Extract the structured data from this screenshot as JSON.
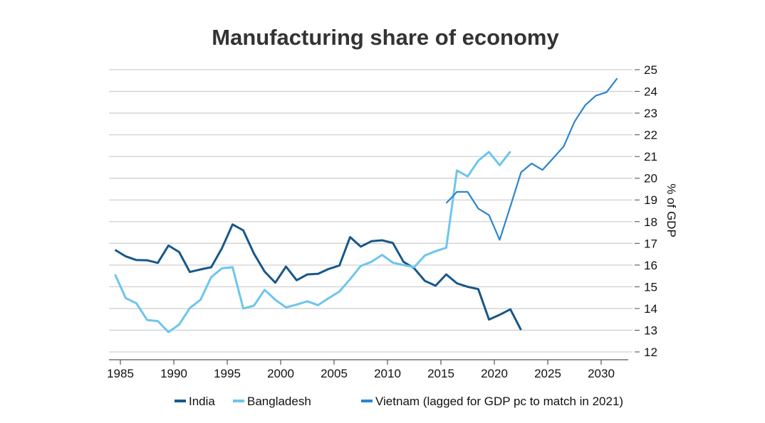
{
  "chart_data": {
    "type": "line",
    "title": "Manufacturing share of economy",
    "xlabel": "",
    "ylabel": "% of GDP",
    "xlim": [
      1984,
      2032
    ],
    "ylim": [
      12,
      25
    ],
    "x_ticks": [
      1985,
      1990,
      1995,
      2000,
      2005,
      2010,
      2015,
      2020,
      2025,
      2030
    ],
    "y_ticks": [
      12,
      13,
      14,
      15,
      16,
      17,
      18,
      19,
      20,
      21,
      22,
      23,
      24,
      25
    ],
    "grid": true,
    "y_axis_side": "right",
    "legend_position": "bottom",
    "series": [
      {
        "name": "India",
        "color": "#17578A",
        "x_start": 1984,
        "values": [
          16.7,
          16.4,
          16.23,
          16.22,
          16.1,
          16.9,
          16.6,
          15.68,
          15.8,
          15.9,
          16.77,
          17.87,
          17.6,
          16.53,
          15.7,
          15.19,
          15.93,
          15.3,
          15.57,
          15.6,
          15.82,
          15.98,
          17.29,
          16.85,
          17.1,
          17.14,
          17.02,
          16.15,
          15.85,
          15.27,
          15.05,
          15.57,
          15.16,
          15.0,
          14.89,
          13.49,
          13.71,
          13.96,
          13.01
        ]
      },
      {
        "name": "Bangladesh",
        "color": "#6DC5EE",
        "x_start": 1984,
        "values": [
          15.57,
          14.48,
          14.24,
          13.47,
          13.42,
          12.91,
          13.26,
          14.02,
          14.4,
          15.44,
          15.85,
          15.9,
          14.0,
          14.13,
          14.86,
          14.4,
          14.05,
          14.18,
          14.33,
          14.15,
          14.48,
          14.78,
          15.35,
          15.96,
          16.15,
          16.47,
          16.11,
          16.0,
          15.9,
          16.44,
          16.64,
          16.8,
          20.36,
          20.08,
          20.81,
          21.21,
          20.6,
          21.23
        ]
      },
      {
        "name": "Vietnam (lagged for GDP pc to match in 2021)",
        "color": "#2B84D0",
        "x_start": 2015,
        "values": [
          18.85,
          19.37,
          19.37,
          18.6,
          18.3,
          17.16,
          18.7,
          20.27,
          20.68,
          20.38,
          20.92,
          21.47,
          22.6,
          23.36,
          23.8,
          23.96,
          24.6
        ]
      }
    ]
  }
}
